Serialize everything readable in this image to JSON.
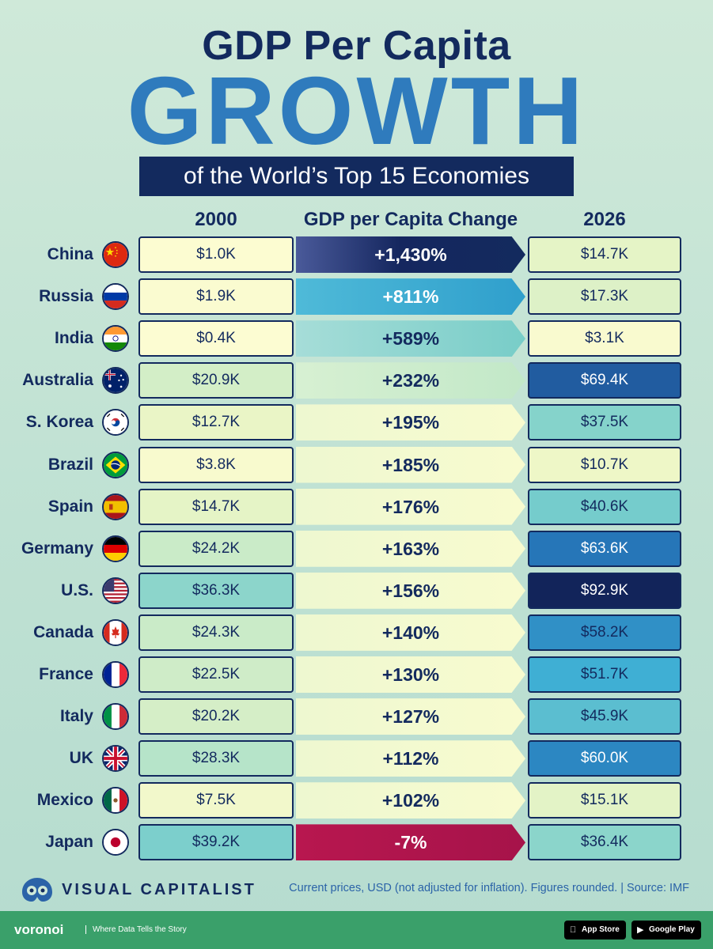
{
  "header": {
    "line1": "GDP Per Capita",
    "line2": "GROWTH",
    "line3": "of the World’s Top 15 Economies"
  },
  "columns": {
    "col_2000": "2000",
    "col_change": "GDP per Capita Change",
    "col_2026": "2026"
  },
  "chart_data": {
    "type": "table",
    "title": "GDP Per Capita GROWTH of the World’s Top 15 Economies",
    "unit": "USD",
    "rows": [
      {
        "country": "China",
        "flag": "china",
        "v2000": "$1.0K",
        "change": "+1,430%",
        "v2026": "$14.7K",
        "n2000": 1.0,
        "nchange": 1430,
        "n2026": 14.7
      },
      {
        "country": "Russia",
        "flag": "russia",
        "v2000": "$1.9K",
        "change": "+811%",
        "v2026": "$17.3K",
        "n2000": 1.9,
        "nchange": 811,
        "n2026": 17.3
      },
      {
        "country": "India",
        "flag": "india",
        "v2000": "$0.4K",
        "change": "+589%",
        "v2026": "$3.1K",
        "n2000": 0.4,
        "nchange": 589,
        "n2026": 3.1
      },
      {
        "country": "Australia",
        "flag": "australia",
        "v2000": "$20.9K",
        "change": "+232%",
        "v2026": "$69.4K",
        "n2000": 20.9,
        "nchange": 232,
        "n2026": 69.4
      },
      {
        "country": "S. Korea",
        "flag": "korea",
        "v2000": "$12.7K",
        "change": "+195%",
        "v2026": "$37.5K",
        "n2000": 12.7,
        "nchange": 195,
        "n2026": 37.5
      },
      {
        "country": "Brazil",
        "flag": "brazil",
        "v2000": "$3.8K",
        "change": "+185%",
        "v2026": "$10.7K",
        "n2000": 3.8,
        "nchange": 185,
        "n2026": 10.7
      },
      {
        "country": "Spain",
        "flag": "spain",
        "v2000": "$14.7K",
        "change": "+176%",
        "v2026": "$40.6K",
        "n2000": 14.7,
        "nchange": 176,
        "n2026": 40.6
      },
      {
        "country": "Germany",
        "flag": "germany",
        "v2000": "$24.2K",
        "change": "+163%",
        "v2026": "$63.6K",
        "n2000": 24.2,
        "nchange": 163,
        "n2026": 63.6
      },
      {
        "country": "U.S.",
        "flag": "usa",
        "v2000": "$36.3K",
        "change": "+156%",
        "v2026": "$92.9K",
        "n2000": 36.3,
        "nchange": 156,
        "n2026": 92.9
      },
      {
        "country": "Canada",
        "flag": "canada",
        "v2000": "$24.3K",
        "change": "+140%",
        "v2026": "$58.2K",
        "n2000": 24.3,
        "nchange": 140,
        "n2026": 58.2
      },
      {
        "country": "France",
        "flag": "france",
        "v2000": "$22.5K",
        "change": "+130%",
        "v2026": "$51.7K",
        "n2000": 22.5,
        "nchange": 130,
        "n2026": 51.7
      },
      {
        "country": "Italy",
        "flag": "italy",
        "v2000": "$20.2K",
        "change": "+127%",
        "v2026": "$45.9K",
        "n2000": 20.2,
        "nchange": 127,
        "n2026": 45.9
      },
      {
        "country": "UK",
        "flag": "uk",
        "v2000": "$28.3K",
        "change": "+112%",
        "v2026": "$60.0K",
        "n2000": 28.3,
        "nchange": 112,
        "n2026": 60.0
      },
      {
        "country": "Mexico",
        "flag": "mexico",
        "v2000": "$7.5K",
        "change": "+102%",
        "v2026": "$15.1K",
        "n2000": 7.5,
        "nchange": 102,
        "n2026": 15.1
      },
      {
        "country": "Japan",
        "flag": "japan",
        "v2000": "$39.2K",
        "change": "-7%",
        "v2026": "$36.4K",
        "n2000": 39.2,
        "nchange": -7,
        "n2026": 36.4
      }
    ]
  },
  "colors": {
    "navy": "#132a5e",
    "accent_blue": "#2f7bbd",
    "negative": "#b8174f"
  },
  "footer": {
    "brand": "VISUAL CAPITALIST",
    "source": "Current prices, USD (not adjusted for inflation). Figures rounded. | Source: IMF",
    "voronoi": "voronoi",
    "tagline": "Where Data Tells the Story",
    "app_store": "App Store",
    "google_play": "Google Play",
    "app_store_icon": "apple-icon",
    "google_play_icon": "play-icon"
  }
}
